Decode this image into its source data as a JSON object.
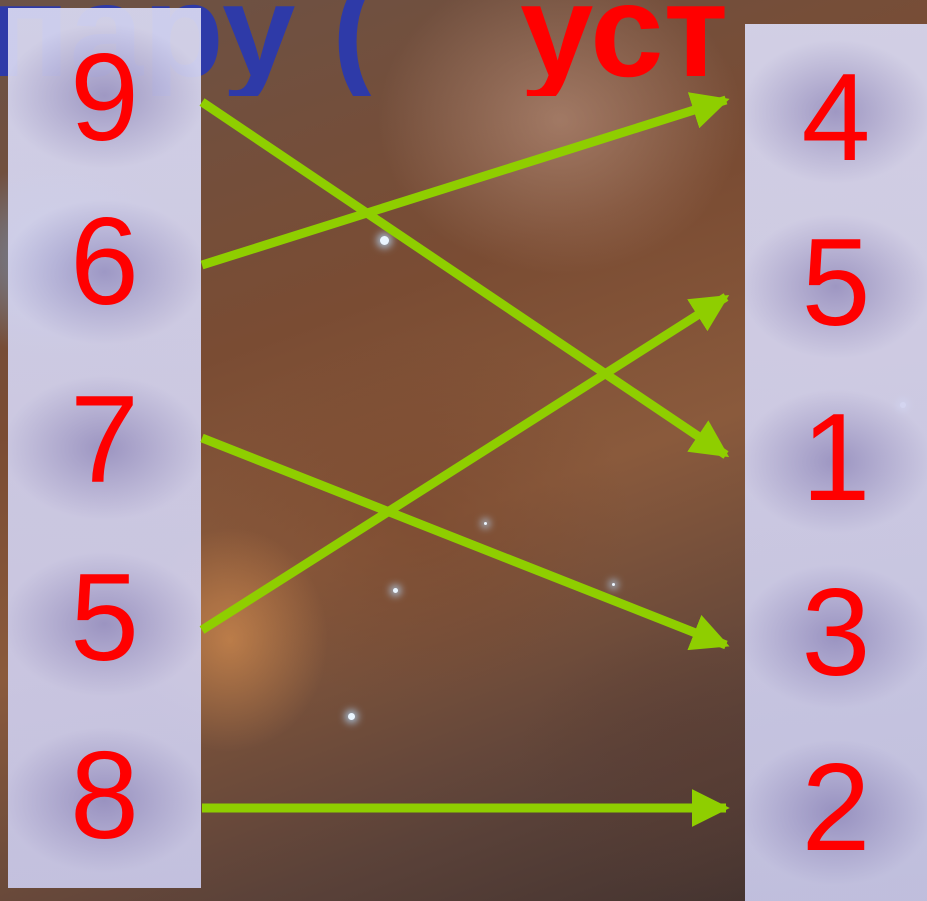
{
  "title": {
    "part_blue": "пару (",
    "part_red": "уст"
  },
  "left_numbers": [
    "9",
    "6",
    "7",
    "5",
    "8"
  ],
  "right_numbers": [
    "4",
    "5",
    "1",
    "3",
    "2"
  ],
  "pairs": [
    {
      "from": "9",
      "to": "1"
    },
    {
      "from": "6",
      "to": "4"
    },
    {
      "from": "7",
      "to": "3"
    },
    {
      "from": "5",
      "to": "5"
    },
    {
      "from": "8",
      "to": "2"
    }
  ],
  "colors": {
    "numbers": "#ff0000",
    "arrows": "#8fce00",
    "title_blue": "#2e3aa8",
    "title_red": "#ff0000"
  }
}
